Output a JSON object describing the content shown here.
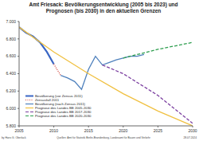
{
  "chart_data": {
    "type": "line",
    "title": "Amt Friesack: Bevölkerungsentwicklung (2005 bis 2023) und Prognosen (bis 2030) in den aktuellen Grenzen",
    "xlim": [
      2005,
      2030
    ],
    "xticks": [
      2005,
      2010,
      2015,
      2020,
      2025,
      2030
    ],
    "ylim": [
      5800,
      7000
    ],
    "yticks": [
      {
        "value": 5800,
        "label": "5.800"
      },
      {
        "value": 6000,
        "label": "6.000"
      },
      {
        "value": 6200,
        "label": "6.200"
      },
      {
        "value": 6400,
        "label": "6.400"
      },
      {
        "value": 6600,
        "label": "6.600"
      },
      {
        "value": 6800,
        "label": "6.800"
      },
      {
        "value": 7000,
        "label": "7.000"
      }
    ],
    "grid": false,
    "legend": "lower left",
    "series": [
      {
        "name": "Bevölkerung (vor Zensus 2011)",
        "color": "#3a66c4",
        "line_style": "solid",
        "x": [
          2005,
          2006,
          2007,
          2008,
          2009,
          2010
        ],
        "values": [
          6935,
          6870,
          6830,
          6760,
          6650,
          6510
        ]
      },
      {
        "name": "Zensusfall 2011",
        "color": "#d0423a",
        "line_style": "dotted",
        "x": [
          2010,
          2011
        ],
        "values": [
          6510,
          6380
        ]
      },
      {
        "name": "Bevölkerung (nach Zensus 2011)",
        "color": "#4f81bd",
        "line_style": "solid",
        "x": [
          2011,
          2012,
          2013,
          2014,
          2015,
          2016,
          2017,
          2018,
          2019,
          2020,
          2021,
          2022,
          2023
        ],
        "values": [
          6380,
          6350,
          6310,
          6220,
          6450,
          6600,
          6500,
          6530,
          6560,
          6580,
          6600,
          6600,
          6620
        ]
      },
      {
        "name": "Prognose des Landes BB 2005-2030",
        "color": "#f0c040",
        "line_style": "solid",
        "x": [
          2005,
          2010,
          2015,
          2020,
          2025,
          2030
        ],
        "values": [
          6935,
          6650,
          6400,
          6170,
          5970,
          5800
        ]
      },
      {
        "name": "Prognose des Landes BB 2017-2030",
        "color": "#7b3fa0",
        "line_style": "dashed",
        "x": [
          2017,
          2020,
          2025,
          2030
        ],
        "values": [
          6500,
          6400,
          6150,
          5830
        ]
      },
      {
        "name": "Prognose des Landes BB 2020-2030",
        "color": "#2e9e4f",
        "line_style": "dashed",
        "x": [
          2020,
          2025,
          2030
        ],
        "values": [
          6580,
          6680,
          6760
        ]
      }
    ],
    "footer": {
      "author": "by Hans G. Oberlack",
      "source": "Quellen: Amt für Statistik Berlin-Brandenburg, Landesamt für Bauen und Verkehr",
      "date": "28.07.2024"
    }
  }
}
